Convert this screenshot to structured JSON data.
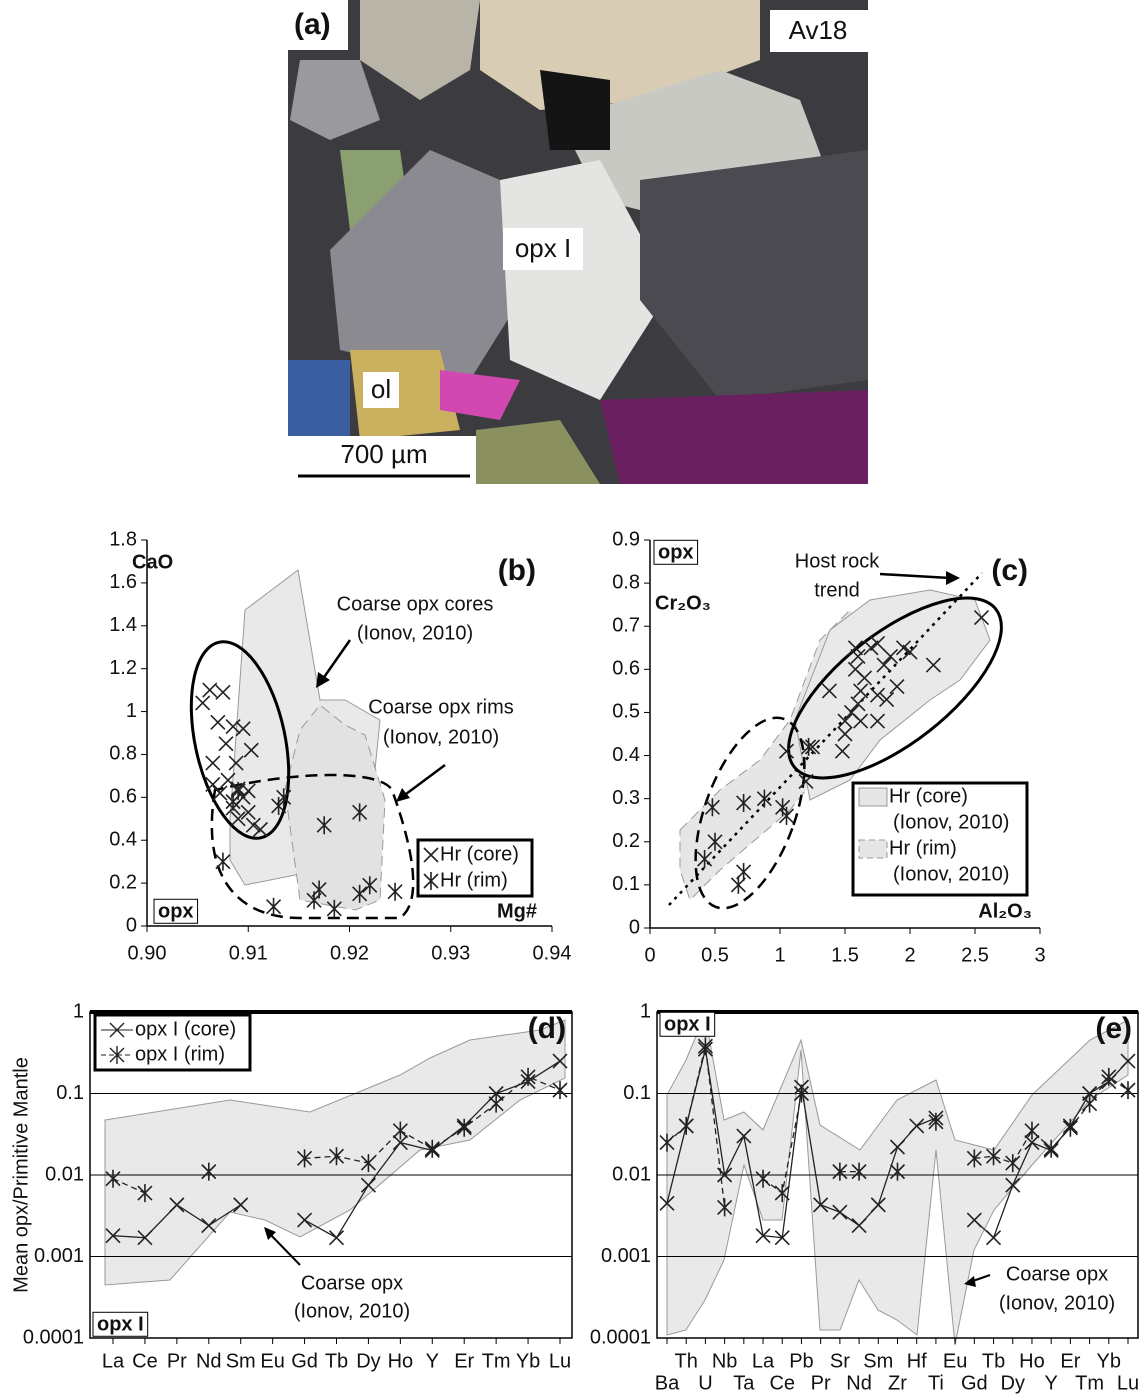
{
  "photo": {
    "panel_label": "(a)",
    "sample": "Av18",
    "labels": [
      "opx I",
      "ol"
    ],
    "scale": "700 µm"
  },
  "chart_data": [
    {
      "type": "scatter",
      "panel_label": "(b)",
      "y_label": "CaO",
      "x_label": "Mg#",
      "corner_label": "opx",
      "xlim": [
        0.9,
        0.94
      ],
      "xticks": [
        {
          "value": 0.9,
          "label": "0.90"
        },
        0.91,
        0.92,
        0.93,
        0.94
      ],
      "ylim": [
        0,
        1.8
      ],
      "yticks": [
        0,
        0.2,
        0.4,
        0.6,
        0.8,
        1,
        1.2,
        1.4,
        1.6,
        1.8
      ],
      "legend": "lower right",
      "color": "#222",
      "series": [
        {
          "name": "Hr (core)",
          "marker": "x",
          "x": [
            0.9055,
            0.9062,
            0.9075,
            0.907,
            0.9078,
            0.9065,
            0.9085,
            0.9095,
            0.9088,
            0.9103,
            0.908,
            0.909,
            0.9072,
            0.9095,
            0.9085,
            0.91,
            0.909,
            0.9105,
            0.9112,
            0.9065,
            0.91
          ],
          "values": [
            1.04,
            1.1,
            1.09,
            0.95,
            0.85,
            0.76,
            0.93,
            0.92,
            0.76,
            0.82,
            0.68,
            0.64,
            0.62,
            0.6,
            0.55,
            0.53,
            0.5,
            0.47,
            0.45,
            0.66,
            0.63
          ]
        },
        {
          "name": "Hr (rim)",
          "marker": "star",
          "x": [
            0.9075,
            0.9135,
            0.913,
            0.9125,
            0.9165,
            0.917,
            0.9175,
            0.9185,
            0.921,
            0.921,
            0.922,
            0.9245,
            0.909,
            0.9085
          ],
          "values": [
            0.3,
            0.6,
            0.56,
            0.09,
            0.12,
            0.17,
            0.47,
            0.08,
            0.53,
            0.15,
            0.19,
            0.16,
            0.63,
            0.58
          ]
        }
      ],
      "annotations": [
        "Coarse opx cores",
        "(Ionov, 2010)",
        "Coarse opx rims",
        "(Ionov, 2010)"
      ]
    },
    {
      "type": "scatter",
      "panel_label": "(c)",
      "y_label": "Cr₂O₃",
      "x_label": "Al₂O₃",
      "corner_label": "opx",
      "xlim": [
        0,
        3
      ],
      "xticks": [
        0,
        0.5,
        1,
        1.5,
        2,
        2.5,
        3
      ],
      "ylim": [
        0,
        0.9
      ],
      "yticks": [
        0,
        0.1,
        0.2,
        0.3,
        0.4,
        0.5,
        0.6,
        0.7,
        0.8,
        0.9
      ],
      "legend": "lower right",
      "color": "#222",
      "series": [
        {
          "marker": "x",
          "x": [
            1.48,
            1.5,
            1.55,
            1.6,
            1.62,
            1.65,
            1.58,
            1.6,
            1.58,
            1.7,
            1.75,
            1.85,
            1.8,
            1.75,
            1.82,
            1.75,
            1.62,
            1.38,
            1.95,
            2.0,
            2.18,
            2.55,
            1.9,
            1.2,
            1.05,
            1.25,
            1.5
          ],
          "values": [
            0.41,
            0.48,
            0.5,
            0.52,
            0.55,
            0.58,
            0.6,
            0.63,
            0.65,
            0.65,
            0.66,
            0.63,
            0.61,
            0.54,
            0.53,
            0.48,
            0.48,
            0.55,
            0.65,
            0.64,
            0.61,
            0.72,
            0.56,
            0.34,
            0.41,
            0.42,
            0.45
          ]
        },
        {
          "marker": "star",
          "x": [
            0.42,
            0.48,
            0.5,
            0.68,
            0.72,
            0.72,
            0.88,
            1.02,
            1.05,
            1.22
          ],
          "values": [
            0.16,
            0.28,
            0.2,
            0.1,
            0.13,
            0.29,
            0.3,
            0.28,
            0.26,
            0.42
          ]
        }
      ],
      "fields": [
        {
          "name": "Hr (core)",
          "source": "(Ionov, 2010)"
        },
        {
          "name": "Hr (rim)",
          "source": "(Ionov, 2010)"
        }
      ],
      "annotations": [
        "Host rock",
        "trend"
      ]
    },
    {
      "type": "line",
      "log_y": true,
      "grid": true,
      "panel_label": "(d)",
      "y_label": "Mean opx/Primitive Mantle",
      "corner_label": "opx I",
      "legend": "upper left",
      "color": "#222",
      "categories": [
        "La",
        "Ce",
        "Pr",
        "Nd",
        "Sm",
        "Eu",
        "Gd",
        "Tb",
        "Dy",
        "Ho",
        "Y",
        "Er",
        "Tm",
        "Yb",
        "Lu"
      ],
      "ylim": [
        0.0001,
        1
      ],
      "yticks": [
        0.0001,
        0.001,
        0.01,
        0.1,
        1
      ],
      "series": [
        {
          "name": "opx I (core)",
          "marker": "x",
          "dashed": false,
          "values": [
            0.0018,
            0.0017,
            0.0043,
            0.0024,
            0.0043,
            null,
            0.0028,
            0.0017,
            0.0075,
            0.025,
            0.02,
            0.04,
            0.1,
            0.14,
            0.25
          ]
        },
        {
          "name": "opx I (rim)",
          "marker": "star",
          "dashed": true,
          "values": [
            0.009,
            0.006,
            null,
            0.011,
            null,
            null,
            0.016,
            0.017,
            0.014,
            0.035,
            0.021,
            0.038,
            0.075,
            0.16,
            0.11
          ]
        }
      ],
      "annotations": [
        "Coarse opx",
        "(Ionov, 2010)"
      ]
    },
    {
      "type": "line",
      "log_y": true,
      "grid": true,
      "panel_label": "(e)",
      "corner_label": "opx I",
      "color": "#222",
      "categories": [
        "Ba",
        "Th",
        "U",
        "Nb",
        "Ta",
        "La",
        "Ce",
        "Pb",
        "Pr",
        "Sr",
        "Nd",
        "Sm",
        "Zr",
        "Hf",
        "Ti",
        "Eu",
        "Gd",
        "Tb",
        "Dy",
        "Ho",
        "Y",
        "Er",
        "Tm",
        "Yb",
        "Lu"
      ],
      "ylim": [
        0.0001,
        1
      ],
      "yticks": [
        0.0001,
        0.001,
        0.01,
        0.1,
        1
      ],
      "series": [
        {
          "marker": "x",
          "dashed": false,
          "values": [
            0.0045,
            0.04,
            0.35,
            0.01,
            0.03,
            0.0018,
            0.0017,
            0.12,
            0.0043,
            0.0035,
            0.0024,
            0.0043,
            0.022,
            0.04,
            0.05,
            null,
            0.0028,
            0.0017,
            0.0075,
            0.025,
            0.02,
            0.04,
            0.1,
            0.14,
            0.25
          ]
        },
        {
          "marker": "star",
          "dashed": true,
          "values": [
            0.025,
            0.04,
            0.38,
            0.004,
            null,
            0.009,
            0.006,
            0.1,
            null,
            0.011,
            0.011,
            null,
            0.011,
            null,
            0.045,
            null,
            0.016,
            0.017,
            0.014,
            0.035,
            0.021,
            0.038,
            0.075,
            0.16,
            0.11
          ]
        }
      ],
      "annotations": [
        "Coarse opx",
        "(Ionov, 2010)"
      ]
    }
  ]
}
